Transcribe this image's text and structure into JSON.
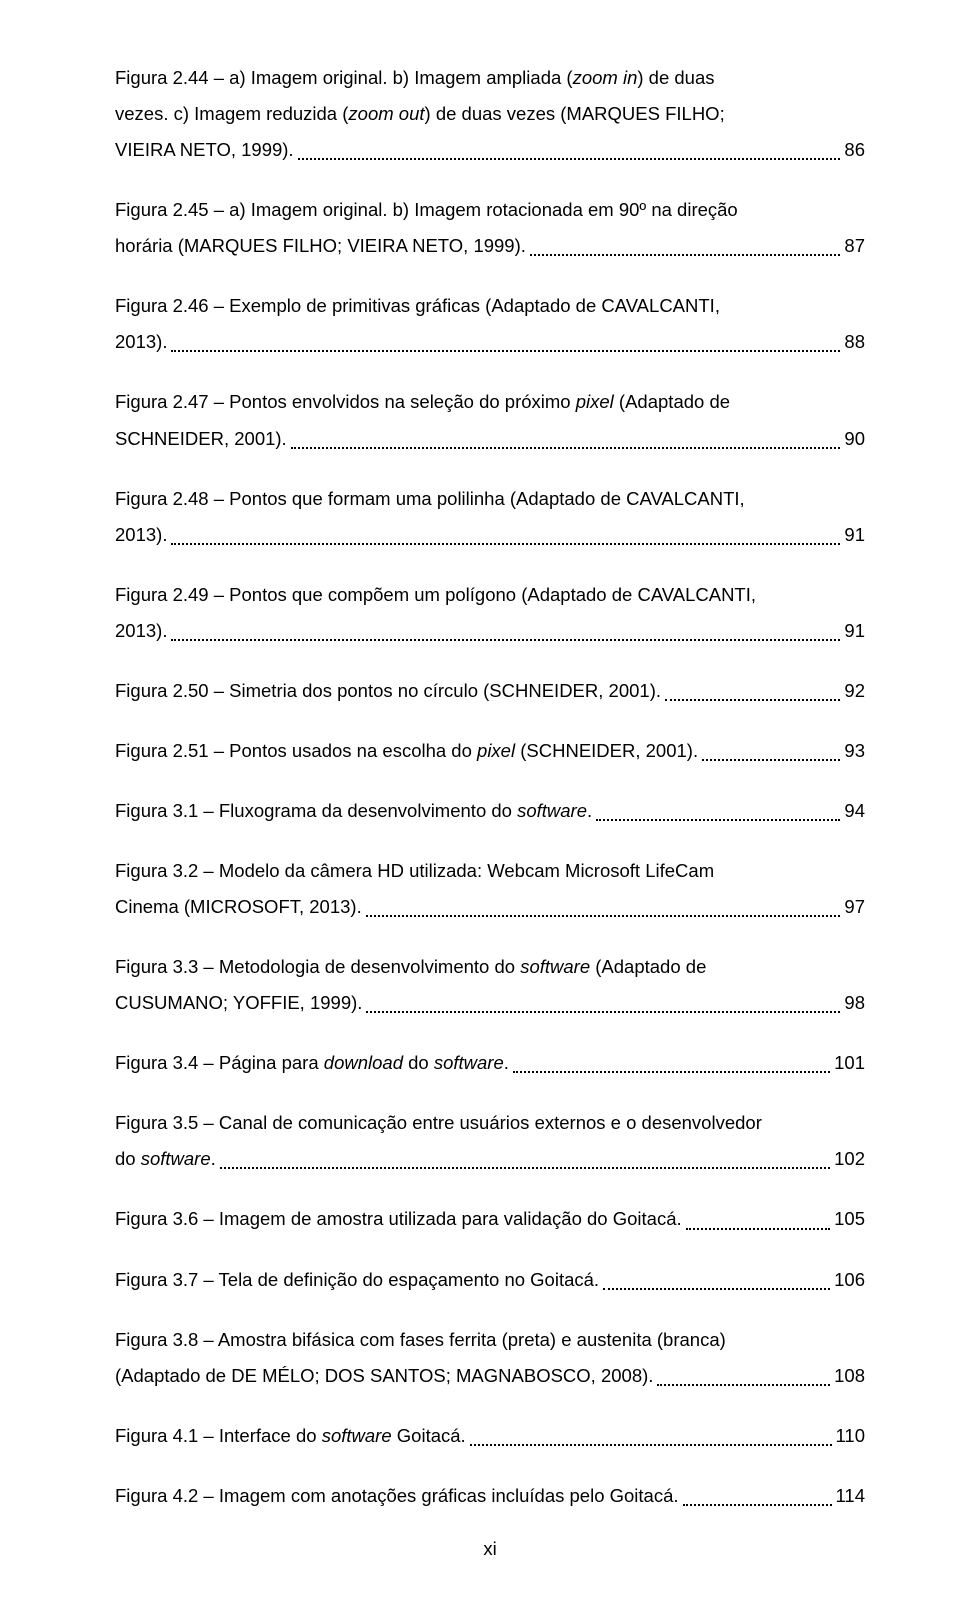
{
  "entries": [
    {
      "lines": [
        [
          {
            "t": "Figura 2.44 – a) Imagem original. b) Imagem ampliada ("
          },
          {
            "t": "zoom in",
            "i": true
          },
          {
            "t": ") de duas"
          }
        ],
        [
          {
            "t": "vezes. c) Imagem reduzida ("
          },
          {
            "t": "zoom out",
            "i": true
          },
          {
            "t": ") de duas vezes (MARQUES FILHO;"
          }
        ]
      ],
      "tail": [
        {
          "t": "VIEIRA NETO, 1999). "
        }
      ],
      "page": "86"
    },
    {
      "lines": [
        [
          {
            "t": "Figura 2.45 – a) Imagem original. b) Imagem rotacionada em 90º na direção"
          }
        ]
      ],
      "tail": [
        {
          "t": "horária (MARQUES FILHO; VIEIRA NETO, 1999)."
        }
      ],
      "page": "87"
    },
    {
      "lines": [
        [
          {
            "t": "Figura 2.46 – Exemplo de primitivas gráficas (Adaptado de CAVALCANTI,"
          }
        ]
      ],
      "tail": [
        {
          "t": "2013). "
        }
      ],
      "page": "88"
    },
    {
      "lines": [
        [
          {
            "t": "Figura 2.47 – Pontos envolvidos na seleção do próximo "
          },
          {
            "t": "pixel",
            "i": true
          },
          {
            "t": " (Adaptado de"
          }
        ]
      ],
      "tail": [
        {
          "t": "SCHNEIDER, 2001). "
        }
      ],
      "page": "90"
    },
    {
      "lines": [
        [
          {
            "t": "Figura 2.48 – Pontos que formam uma polilinha (Adaptado de CAVALCANTI,"
          }
        ]
      ],
      "tail": [
        {
          "t": "2013). "
        }
      ],
      "page": "91"
    },
    {
      "lines": [
        [
          {
            "t": "Figura 2.49 – Pontos que compõem um polígono (Adaptado de CAVALCANTI,"
          }
        ]
      ],
      "tail": [
        {
          "t": "2013). "
        }
      ],
      "page": "91"
    },
    {
      "lines": [],
      "tail": [
        {
          "t": "Figura 2.50 – Simetria dos pontos no círculo (SCHNEIDER, 2001)."
        }
      ],
      "page": "92"
    },
    {
      "lines": [],
      "tail": [
        {
          "t": "Figura 2.51 – Pontos usados na escolha do "
        },
        {
          "t": "pixel",
          "i": true
        },
        {
          "t": " (SCHNEIDER, 2001)."
        }
      ],
      "page": "93"
    },
    {
      "lines": [],
      "tail": [
        {
          "t": "Figura 3.1 – Fluxograma da desenvolvimento do "
        },
        {
          "t": "software",
          "i": true
        },
        {
          "t": ". "
        }
      ],
      "page": "94"
    },
    {
      "lines": [
        [
          {
            "t": "Figura 3.2 – Modelo da câmera HD utilizada: Webcam Microsoft LifeCam"
          }
        ]
      ],
      "tail": [
        {
          "t": "Cinema (MICROSOFT, 2013). "
        }
      ],
      "page": "97"
    },
    {
      "lines": [
        [
          {
            "t": "Figura 3.3 – Metodologia de desenvolvimento do "
          },
          {
            "t": "software",
            "i": true
          },
          {
            "t": " (Adaptado de"
          }
        ]
      ],
      "tail": [
        {
          "t": "CUSUMANO; YOFFIE, 1999). "
        }
      ],
      "page": "98"
    },
    {
      "lines": [],
      "tail": [
        {
          "t": "Figura 3.4 – Página para "
        },
        {
          "t": "download",
          "i": true
        },
        {
          "t": " do "
        },
        {
          "t": "software",
          "i": true
        },
        {
          "t": ". "
        }
      ],
      "page": "101"
    },
    {
      "lines": [
        [
          {
            "t": "Figura 3.5 – Canal de comunicação entre usuários externos e o desenvolvedor"
          }
        ]
      ],
      "tail": [
        {
          "t": "do "
        },
        {
          "t": "software",
          "i": true
        },
        {
          "t": "."
        }
      ],
      "page": "102"
    },
    {
      "lines": [],
      "tail": [
        {
          "t": "Figura 3.6 – Imagem de amostra utilizada para validação do Goitacá. "
        }
      ],
      "page": "105"
    },
    {
      "lines": [],
      "tail": [
        {
          "t": "Figura 3.7 – Tela de definição do espaçamento no Goitacá. "
        }
      ],
      "page": "106"
    },
    {
      "lines": [
        [
          {
            "t": "Figura 3.8 – Amostra bifásica com fases ferrita (preta) e austenita (branca)"
          }
        ]
      ],
      "tail": [
        {
          "t": "(Adaptado de DE MÉLO; DOS SANTOS; MAGNABOSCO, 2008). "
        }
      ],
      "page": "108"
    },
    {
      "lines": [],
      "tail": [
        {
          "t": "Figura 4.1 – Interface do "
        },
        {
          "t": "software",
          "i": true
        },
        {
          "t": " Goitacá."
        }
      ],
      "page": "110"
    },
    {
      "lines": [],
      "tail": [
        {
          "t": "Figura 4.2 – Imagem com anotações gráficas incluídas pelo Goitacá. "
        }
      ],
      "page": "114"
    }
  ],
  "footer": "xi"
}
